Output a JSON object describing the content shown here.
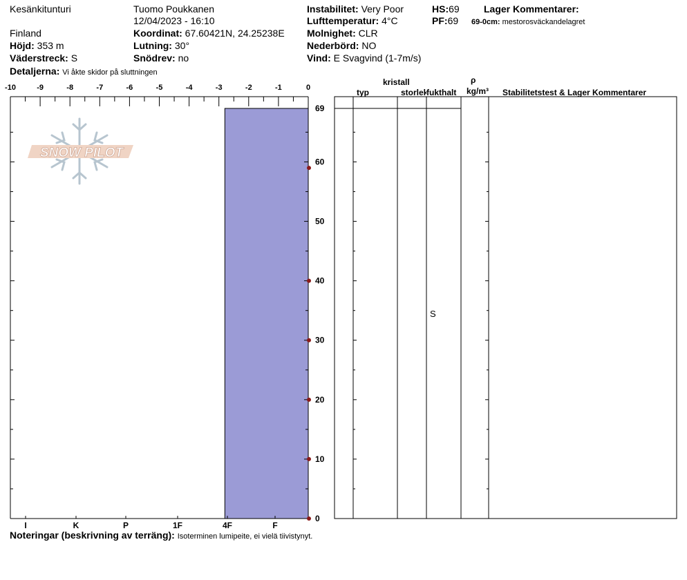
{
  "header": {
    "location": "Kesänkitunturi",
    "country": "Finland",
    "observer": "Tuomo Poukkanen",
    "datetime": "12/04/2023 - 16:10",
    "elevation_label": "Höjd:",
    "elevation_value": "353 m",
    "aspect_label": "Väderstreck:",
    "aspect_value": "S",
    "coords_label": "Koordinat:",
    "coords_value": "67.60421N, 24.25238E",
    "slope_label": "Lutning:",
    "slope_value": "30°",
    "drift_label": "Snödrev:",
    "drift_value": "no",
    "details_label": "Detaljerna:",
    "details_value": "Vi åkte skidor på sluttningen",
    "instability_label": "Instabilitet:",
    "instability_value": "Very Poor",
    "airtemp_label": "Lufttemperatur:",
    "airtemp_value": "4°C",
    "sky_label": "Molnighet:",
    "sky_value": "CLR",
    "precip_label": "Nederbörd:",
    "precip_value": "NO",
    "wind_label": "Vind:",
    "wind_value": "E Svagvind (1-7m/s)",
    "hs_label": "HS:",
    "hs_value": "69",
    "pf_label": "PF:",
    "pf_value": "69",
    "layer_comments_title": "Lager Kommentarer:",
    "layer_comment_depth": "69-0cm:",
    "layer_comment_text": "mestorosväckandelagret"
  },
  "logo_text": "SNOW PILOT",
  "table": {
    "col_type": "typ",
    "col_crystal_top": "kristall",
    "col_crystal_size": "storlek",
    "col_moisture": "fukthalt",
    "col_rho": "ρ",
    "col_density_unit": "kg/m³",
    "col_comments": "Stabilitetstest & Lager Kommentarer",
    "moisture_value": "S"
  },
  "footer": {
    "notes_label": "Noteringar (beskrivning av terräng):",
    "notes_value": "Isoterminen lumipeite, ei vielä tiivistynyt."
  },
  "chart_data": {
    "type": "bar",
    "temperature_axis": {
      "ticks": [
        "-10",
        "-9",
        "-8",
        "-7",
        "-6",
        "-5",
        "-4",
        "-3",
        "-2",
        "-1",
        "0"
      ],
      "range": [
        -10,
        0
      ]
    },
    "hardness_axis": {
      "ticks": [
        "I",
        "K",
        "P",
        "1F",
        "4F",
        "F"
      ]
    },
    "depth_axis": {
      "range": [
        0,
        69
      ],
      "ticks": [
        "0",
        "10",
        "20",
        "30",
        "40",
        "50",
        "60",
        "69"
      ]
    },
    "layers": [
      {
        "top": 69,
        "bottom": 0,
        "hardness_to_temp": -2.8,
        "moisture": "S",
        "color": "#9b9bd6"
      }
    ],
    "temperature_profile": [
      {
        "depth": 59,
        "temp": 0
      },
      {
        "depth": 40,
        "temp": 0
      },
      {
        "depth": 30,
        "temp": 0
      },
      {
        "depth": 20,
        "temp": 0
      },
      {
        "depth": 10,
        "temp": 0
      },
      {
        "depth": 0,
        "temp": 0
      }
    ],
    "marker_color": "#8b1a1a"
  }
}
